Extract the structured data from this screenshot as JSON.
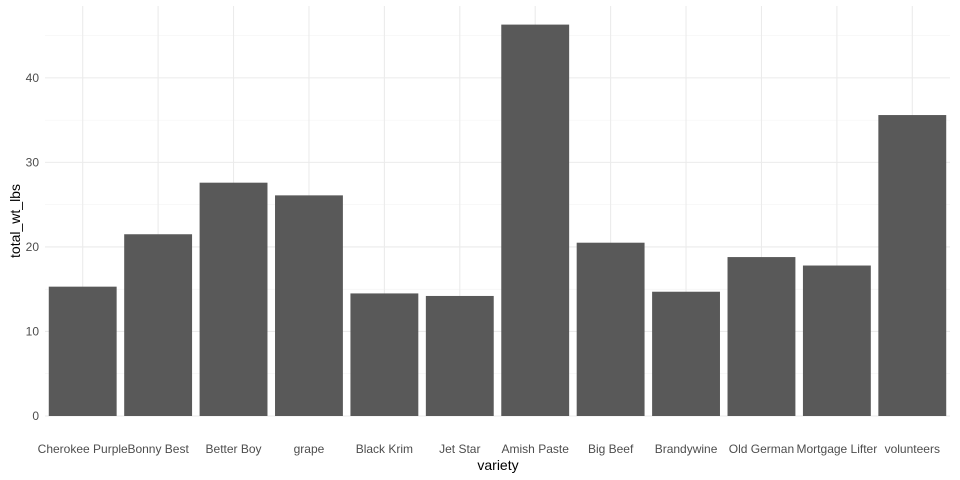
{
  "chart_data": {
    "type": "bar",
    "categories": [
      "Cherokee Purple",
      "Bonny Best",
      "Better Boy",
      "grape",
      "Black Krim",
      "Jet Star",
      "Amish Paste",
      "Big Beef",
      "Brandywine",
      "Old German",
      "Mortgage Lifter",
      "volunteers"
    ],
    "values": [
      15.3,
      21.5,
      27.6,
      26.1,
      14.5,
      14.2,
      46.3,
      20.5,
      14.7,
      18.8,
      17.8,
      35.6
    ],
    "xlabel": "variety",
    "ylabel": "total_wt_lbs",
    "ylim": [
      0,
      48.5
    ],
    "yticks": [
      "0",
      "10",
      "20",
      "30",
      "40"
    ],
    "grid": true,
    "bar_color": "#595959",
    "theme": "minimal"
  }
}
